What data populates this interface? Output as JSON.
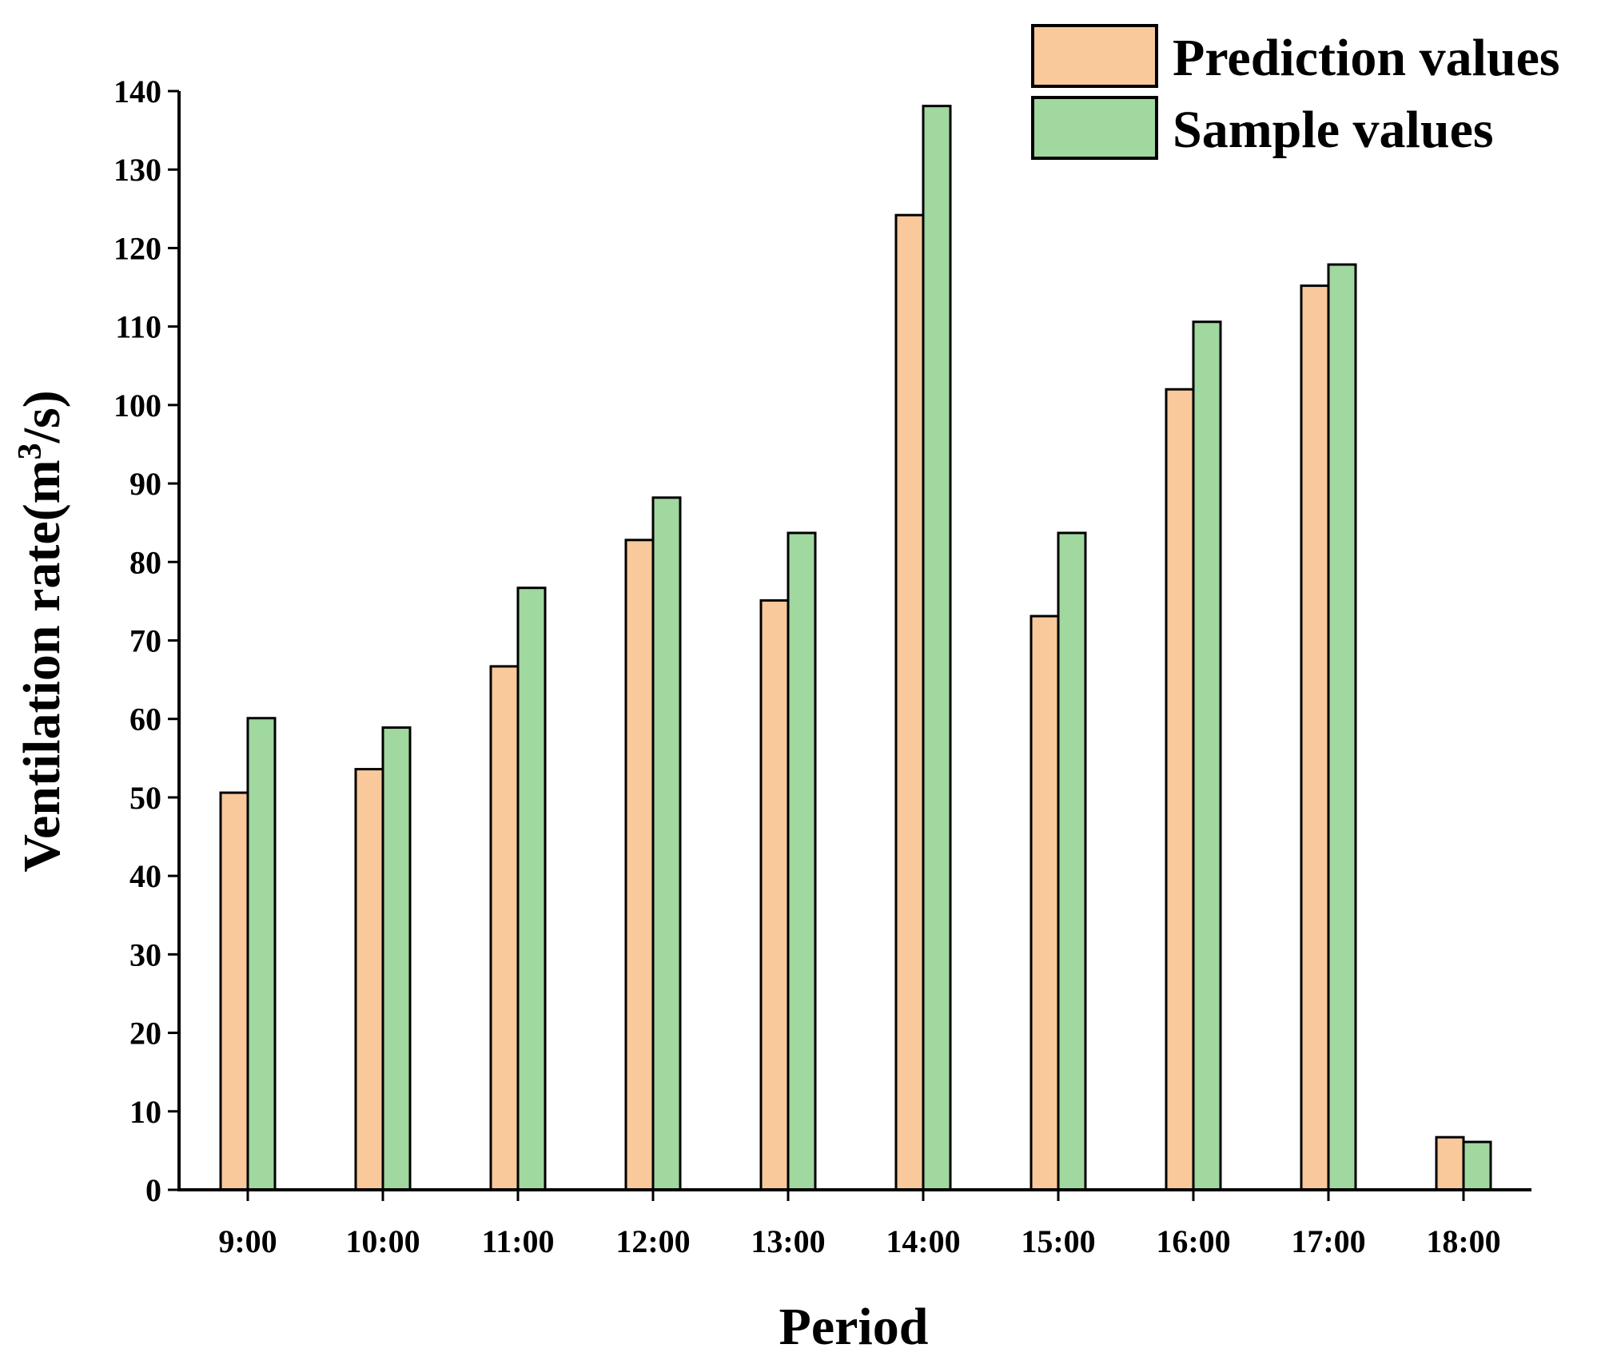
{
  "chart_data": {
    "type": "bar",
    "title": "",
    "xlabel": "Period",
    "ylabel": {
      "main": "Ventilation rate(m",
      "sup": "3",
      "tail": "/s)"
    },
    "categories": [
      "9:00",
      "10:00",
      "11:00",
      "12:00",
      "13:00",
      "14:00",
      "15:00",
      "16:00",
      "17:00",
      "18:00"
    ],
    "series": [
      {
        "name": "Prediction values",
        "color": "#F9C89B",
        "values": [
          50.6,
          53.6,
          66.7,
          82.8,
          75.1,
          124.2,
          73.1,
          102.0,
          115.2,
          6.7
        ]
      },
      {
        "name": "Sample values",
        "color": "#A0D8A0",
        "values": [
          60.1,
          58.9,
          76.7,
          88.2,
          83.7,
          138.1,
          83.7,
          110.6,
          117.9,
          6.1
        ]
      }
    ],
    "ylim": [
      0,
      140
    ],
    "yticks": [
      "0",
      "10",
      "20",
      "30",
      "40",
      "50",
      "60",
      "70",
      "80",
      "90",
      "100",
      "110",
      "120",
      "130",
      "140"
    ],
    "grid": false,
    "legend": "top-right"
  }
}
